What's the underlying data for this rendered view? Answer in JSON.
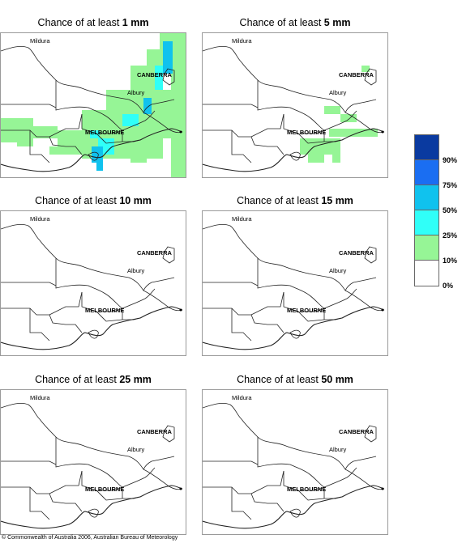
{
  "panels": [
    {
      "title_prefix": "Chance of at least ",
      "title_value": "1 mm"
    },
    {
      "title_prefix": "Chance of at least ",
      "title_value": "5 mm"
    },
    {
      "title_prefix": "Chance of at least ",
      "title_value": "10 mm"
    },
    {
      "title_prefix": "Chance of at least ",
      "title_value": "15 mm"
    },
    {
      "title_prefix": "Chance of at least ",
      "title_value": "25 mm"
    },
    {
      "title_prefix": "Chance of at least ",
      "title_value": "50 mm"
    }
  ],
  "places": {
    "mildura": "Mildura",
    "canberra": "CANBERRA",
    "albury": "Albury",
    "melbourne": "MELBOURNE"
  },
  "legend": {
    "labels": [
      "90%",
      "75%",
      "50%",
      "25%",
      "10%",
      "0%"
    ],
    "colors": [
      "#0a3aa0",
      "#1a6ef2",
      "#10c2ee",
      "#30fff8",
      "#96f596",
      "#ffffff"
    ]
  },
  "footer": {
    "copyright": "© Commonwealth of Australia 2006, Australian Bureau of Meteorology"
  }
}
